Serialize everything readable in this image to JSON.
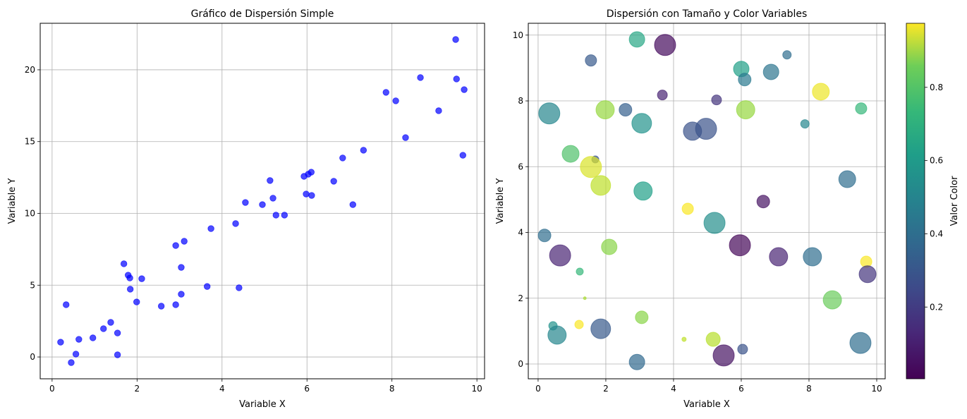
{
  "chart_data": [
    {
      "type": "scatter",
      "title": "Gráfico de Dispersión Simple",
      "xlabel": "Variable X",
      "ylabel": "Variable Y",
      "xlim": [
        -0.28,
        10.18
      ],
      "ylim": [
        -1.52,
        23.24
      ],
      "xticks": [
        0,
        2,
        4,
        6,
        8,
        10
      ],
      "yticks": [
        0,
        5,
        10,
        15,
        20
      ],
      "grid": true,
      "color": "#0000ff",
      "alpha": 0.7,
      "points": [
        [
          0.2,
          1.03
        ],
        [
          0.33,
          3.64
        ],
        [
          0.45,
          -0.39
        ],
        [
          0.56,
          0.2
        ],
        [
          0.63,
          1.23
        ],
        [
          0.96,
          1.33
        ],
        [
          1.21,
          1.97
        ],
        [
          1.38,
          2.41
        ],
        [
          1.54,
          1.67
        ],
        [
          1.54,
          0.15
        ],
        [
          1.69,
          6.49
        ],
        [
          1.79,
          5.7
        ],
        [
          1.83,
          5.5
        ],
        [
          1.84,
          4.72
        ],
        [
          1.99,
          3.83
        ],
        [
          2.11,
          5.45
        ],
        [
          2.57,
          3.54
        ],
        [
          2.91,
          7.76
        ],
        [
          2.91,
          3.64
        ],
        [
          3.04,
          6.24
        ],
        [
          3.04,
          4.37
        ],
        [
          3.11,
          8.06
        ],
        [
          3.65,
          4.91
        ],
        [
          3.74,
          8.94
        ],
        [
          4.32,
          9.29
        ],
        [
          4.4,
          4.82
        ],
        [
          4.55,
          10.76
        ],
        [
          4.95,
          10.61
        ],
        [
          5.13,
          12.29
        ],
        [
          5.2,
          11.06
        ],
        [
          5.27,
          9.88
        ],
        [
          5.47,
          9.88
        ],
        [
          5.93,
          12.58
        ],
        [
          5.98,
          11.35
        ],
        [
          6.03,
          12.73
        ],
        [
          6.1,
          12.87
        ],
        [
          6.11,
          11.25
        ],
        [
          6.63,
          12.24
        ],
        [
          6.84,
          13.86
        ],
        [
          7.08,
          10.61
        ],
        [
          7.33,
          14.4
        ],
        [
          7.86,
          18.43
        ],
        [
          8.09,
          17.84
        ],
        [
          8.32,
          15.28
        ],
        [
          8.67,
          19.46
        ],
        [
          9.1,
          17.15
        ],
        [
          9.5,
          22.11
        ],
        [
          9.52,
          19.36
        ],
        [
          9.67,
          14.05
        ],
        [
          9.7,
          18.62
        ]
      ]
    },
    {
      "type": "scatter",
      "title": "Dispersión con Tamaño y Color Variables",
      "xlabel": "Variable X",
      "ylabel": "Variable Y",
      "xlim": [
        -0.29,
        10.25
      ],
      "ylim": [
        -0.45,
        10.36
      ],
      "xticks": [
        0,
        2,
        4,
        6,
        8,
        10
      ],
      "yticks": [
        0,
        2,
        4,
        6,
        8,
        10
      ],
      "grid": true,
      "colormap": "viridis",
      "alpha": 0.7,
      "colorbar": {
        "label": "Valor Color",
        "range": [
          0.004,
          0.975
        ],
        "ticks": [
          0.2,
          0.4,
          0.6,
          0.8
        ]
      },
      "points_fields": [
        "x",
        "y",
        "size",
        "color_value"
      ],
      "points": [
        [
          2.92,
          9.87,
          251,
          0.58
        ],
        [
          3.75,
          9.7,
          466,
          0.03
        ],
        [
          1.56,
          9.23,
          133,
          0.28
        ],
        [
          7.35,
          9.4,
          75,
          0.35
        ],
        [
          6.0,
          8.97,
          251,
          0.55
        ],
        [
          6.1,
          8.65,
          168,
          0.4
        ],
        [
          6.88,
          8.88,
          251,
          0.38
        ],
        [
          8.35,
          8.28,
          298,
          0.95
        ],
        [
          3.67,
          8.18,
          102,
          0.1
        ],
        [
          5.27,
          8.03,
          102,
          0.15
        ],
        [
          0.33,
          7.62,
          466,
          0.45
        ],
        [
          1.98,
          7.73,
          350,
          0.82
        ],
        [
          2.58,
          7.73,
          168,
          0.3
        ],
        [
          3.06,
          7.32,
          406,
          0.5
        ],
        [
          4.56,
          7.08,
          350,
          0.25
        ],
        [
          4.96,
          7.15,
          466,
          0.25
        ],
        [
          6.13,
          7.73,
          350,
          0.82
        ],
        [
          9.54,
          7.77,
          133,
          0.65
        ],
        [
          7.88,
          7.3,
          75,
          0.45
        ],
        [
          0.96,
          6.39,
          298,
          0.7
        ],
        [
          1.69,
          6.22,
          52,
          0.25
        ],
        [
          1.56,
          5.99,
          466,
          0.92
        ],
        [
          1.85,
          5.43,
          406,
          0.88
        ],
        [
          3.1,
          5.26,
          350,
          0.55
        ],
        [
          9.13,
          5.62,
          298,
          0.35
        ],
        [
          6.65,
          4.94,
          168,
          0.05
        ],
        [
          4.42,
          4.72,
          133,
          0.97
        ],
        [
          5.21,
          4.29,
          466,
          0.48
        ],
        [
          0.19,
          3.91,
          168,
          0.35
        ],
        [
          0.65,
          3.3,
          466,
          0.1
        ],
        [
          2.1,
          3.56,
          251,
          0.8
        ],
        [
          5.96,
          3.61,
          466,
          0.02
        ],
        [
          7.1,
          3.26,
          350,
          0.1
        ],
        [
          8.1,
          3.26,
          350,
          0.35
        ],
        [
          9.69,
          3.11,
          133,
          0.97
        ],
        [
          9.73,
          2.73,
          298,
          0.15
        ],
        [
          1.23,
          2.81,
          52,
          0.65
        ],
        [
          8.69,
          1.95,
          350,
          0.75
        ],
        [
          1.38,
          2.0,
          8,
          0.85
        ],
        [
          3.06,
          1.42,
          168,
          0.8
        ],
        [
          0.44,
          1.16,
          75,
          0.5
        ],
        [
          1.21,
          1.2,
          75,
          0.97
        ],
        [
          1.85,
          1.07,
          406,
          0.28
        ],
        [
          0.56,
          0.88,
          350,
          0.45
        ],
        [
          4.31,
          0.75,
          19,
          0.88
        ],
        [
          5.17,
          0.75,
          207,
          0.87
        ],
        [
          5.48,
          0.26,
          466,
          0.05
        ],
        [
          6.04,
          0.45,
          102,
          0.25
        ],
        [
          9.52,
          0.64,
          466,
          0.35
        ],
        [
          2.92,
          0.06,
          251,
          0.33
        ]
      ]
    }
  ]
}
